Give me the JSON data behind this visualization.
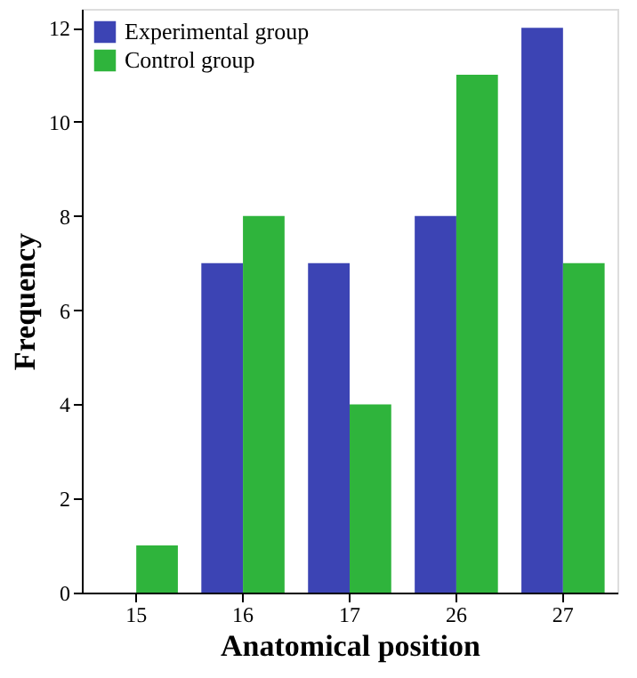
{
  "chart_data": {
    "type": "bar",
    "xlabel": "Anatomical position",
    "ylabel": "Frequency",
    "categories": [
      "15",
      "16",
      "17",
      "26",
      "27"
    ],
    "series": [
      {
        "name": "Experimental group",
        "color": "#3c44b4",
        "values": [
          0,
          7,
          7,
          8,
          12
        ]
      },
      {
        "name": "Control group",
        "color": "#2fb43c",
        "values": [
          1,
          8,
          4,
          11,
          7
        ]
      }
    ],
    "ylim": [
      0,
      12.4
    ],
    "yticks": [
      0,
      2,
      4,
      6,
      8,
      10,
      12
    ],
    "grid": false,
    "legend": "top left"
  }
}
